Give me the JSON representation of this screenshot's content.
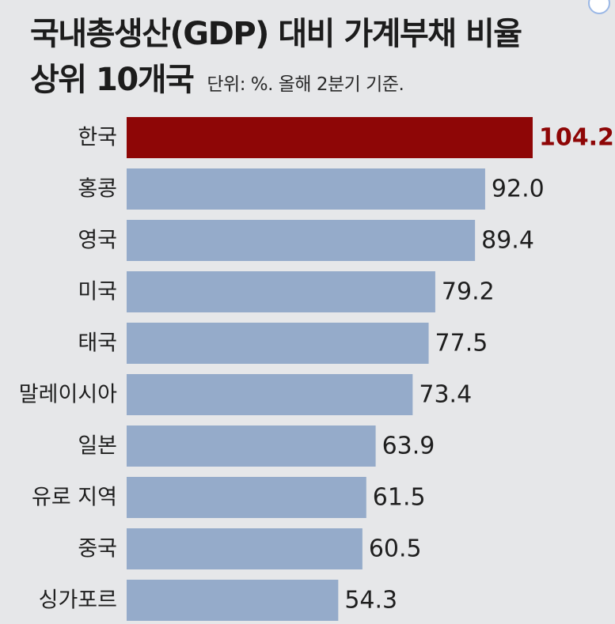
{
  "header": {
    "title_line1": "국내총생산(GDP) 대비 가계부채 비율",
    "title_line2": "상위 10개국",
    "subtitle": "단위: %. 올해 2분기 기준."
  },
  "colors": {
    "background": "#e6e7e9",
    "bar": "#95abca",
    "highlight_bar": "#8e0606",
    "highlight_text": "#8e0606",
    "text": "#1e1e1e"
  },
  "chart_data": {
    "type": "bar",
    "orientation": "horizontal",
    "title": "국내총생산(GDP) 대비 가계부채 비율 상위 10개국",
    "subtitle": "단위: %. 올해 2분기 기준.",
    "categories": [
      "한국",
      "홍콩",
      "영국",
      "미국",
      "태국",
      "말레이시아",
      "일본",
      "유로 지역",
      "중국",
      "싱가포르"
    ],
    "values": [
      104.2,
      92.0,
      89.4,
      79.2,
      77.5,
      73.4,
      63.9,
      61.5,
      60.5,
      54.3
    ],
    "value_labels": [
      "104.2",
      "92.0",
      "89.4",
      "79.2",
      "77.5",
      "73.4",
      "63.9",
      "61.5",
      "60.5",
      "54.3"
    ],
    "highlight_index": 0,
    "xlim": [
      0,
      104.2
    ],
    "grid": false,
    "legend": "none"
  }
}
